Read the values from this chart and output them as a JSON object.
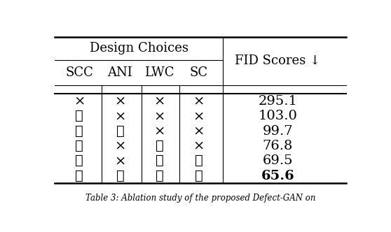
{
  "title_group": "Design Choices",
  "col_headers": [
    "SCC",
    "ANI",
    "LWC",
    "SC",
    "FID Scores ↓"
  ],
  "rows": [
    [
      "×",
      "×",
      "×",
      "×",
      "295.1",
      false
    ],
    [
      "✓",
      "×",
      "×",
      "×",
      "103.0",
      false
    ],
    [
      "✓",
      "✓",
      "×",
      "×",
      "99.7",
      false
    ],
    [
      "✓",
      "×",
      "✓",
      "×",
      "76.8",
      false
    ],
    [
      "✓",
      "×",
      "✓",
      "✓",
      "69.5",
      false
    ],
    [
      "✓",
      "✓",
      "✓",
      "✓",
      "65.6",
      true
    ]
  ],
  "figsize": [
    5.58,
    3.32
  ],
  "dpi": 100,
  "background_color": "#ffffff",
  "text_color": "#000000",
  "header_fontsize": 13,
  "cell_fontsize": 13,
  "caption": "Table 3: Ablation study of the proposed Defect-GAN on"
}
